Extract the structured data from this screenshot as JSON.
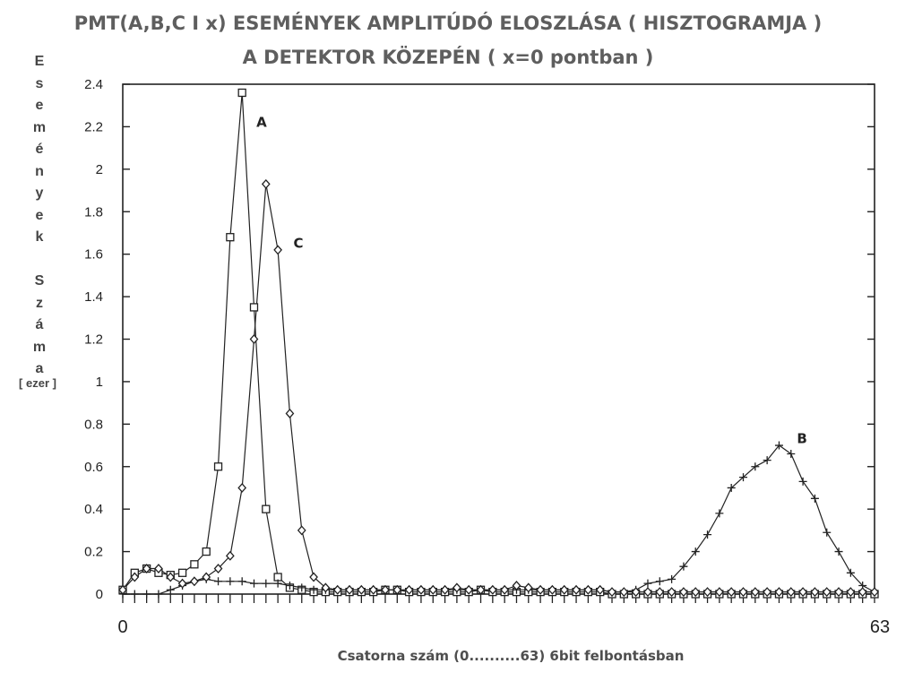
{
  "title_line1": "PMT(A,B,C I x) ESEMÉNYEK AMPLITÚDÓ ELOSZLÁSA ( HISZTOGRAMJA )",
  "title_line2": "A DETEKTOR KÖZEPÉN ( x=0 pontban )",
  "ylabel_letters": [
    "E",
    "s",
    "e",
    "m",
    "é",
    "n",
    "y",
    "e",
    "k",
    "",
    "S",
    "z",
    "á",
    "m",
    "a"
  ],
  "ylabel_unit": "[ ezer ]",
  "xlabel": "Csatorna szám (0..........63) 6bit felbontásban",
  "chart_data": {
    "type": "line",
    "xlim": [
      0,
      63
    ],
    "ylim": [
      0,
      2.4
    ],
    "yticks": [
      "0",
      "0.2",
      "0.4",
      "0.6",
      "0.8",
      "1",
      "1.2",
      "1.4",
      "1.6",
      "1.8",
      "2",
      "2.2",
      "2.4"
    ],
    "xtick_labels": [
      "0",
      "63"
    ],
    "grid": false,
    "series": [
      {
        "name": "A",
        "marker": "square",
        "x": [
          0,
          1,
          2,
          3,
          4,
          5,
          6,
          7,
          8,
          9,
          10,
          11,
          12,
          13,
          14,
          15,
          16,
          17,
          18,
          19,
          20,
          21,
          22,
          23,
          24,
          25,
          26,
          27,
          28,
          29,
          30,
          31,
          32,
          33,
          34,
          35,
          36,
          37,
          38,
          39,
          40,
          41,
          42,
          43,
          44,
          45,
          46,
          47,
          48,
          49,
          50,
          51,
          52,
          53,
          54,
          55,
          56,
          57,
          58,
          59,
          60,
          61,
          62,
          63
        ],
        "y": [
          0.02,
          0.1,
          0.12,
          0.1,
          0.09,
          0.1,
          0.14,
          0.2,
          0.6,
          1.68,
          2.36,
          1.35,
          0.4,
          0.08,
          0.03,
          0.02,
          0.01,
          0.01,
          0.01,
          0.01,
          0.01,
          0.01,
          0.02,
          0.02,
          0.01,
          0.01,
          0.01,
          0.01,
          0.01,
          0.01,
          0.02,
          0.01,
          0.01,
          0.01,
          0.01,
          0.01,
          0.01,
          0.01,
          0.01,
          0.01,
          0.01,
          0.0,
          0.0,
          0.0,
          0.0,
          0.0,
          0.0,
          0.0,
          0.0,
          0.0,
          0.0,
          0.0,
          0.0,
          0.0,
          0.0,
          0.0,
          0.0,
          0.0,
          0.0,
          0.0,
          0.0,
          0.0,
          0.0,
          0.0
        ]
      },
      {
        "name": "B",
        "marker": "plus",
        "x": [
          0,
          1,
          2,
          3,
          4,
          5,
          6,
          7,
          8,
          9,
          10,
          11,
          12,
          13,
          14,
          15,
          16,
          17,
          18,
          19,
          20,
          21,
          22,
          23,
          24,
          25,
          26,
          27,
          28,
          29,
          30,
          31,
          32,
          33,
          34,
          35,
          36,
          37,
          38,
          39,
          40,
          41,
          42,
          43,
          44,
          45,
          46,
          47,
          48,
          49,
          50,
          51,
          52,
          53,
          54,
          55,
          56,
          57,
          58,
          59,
          60,
          61,
          62,
          63
        ],
        "y": [
          0.0,
          0.0,
          0.0,
          0.0,
          0.02,
          0.04,
          0.06,
          0.07,
          0.06,
          0.06,
          0.06,
          0.05,
          0.05,
          0.05,
          0.04,
          0.03,
          0.02,
          0.02,
          0.02,
          0.02,
          0.02,
          0.02,
          0.02,
          0.02,
          0.02,
          0.02,
          0.02,
          0.02,
          0.02,
          0.02,
          0.02,
          0.02,
          0.02,
          0.02,
          0.02,
          0.02,
          0.02,
          0.02,
          0.02,
          0.02,
          0.02,
          0.01,
          0.01,
          0.02,
          0.05,
          0.06,
          0.07,
          0.13,
          0.2,
          0.28,
          0.38,
          0.5,
          0.55,
          0.6,
          0.63,
          0.7,
          0.66,
          0.53,
          0.45,
          0.29,
          0.2,
          0.1,
          0.04,
          0.01
        ]
      },
      {
        "name": "C",
        "marker": "diamond",
        "x": [
          0,
          1,
          2,
          3,
          4,
          5,
          6,
          7,
          8,
          9,
          10,
          11,
          12,
          13,
          14,
          15,
          16,
          17,
          18,
          19,
          20,
          21,
          22,
          23,
          24,
          25,
          26,
          27,
          28,
          29,
          30,
          31,
          32,
          33,
          34,
          35,
          36,
          37,
          38,
          39,
          40,
          41,
          42,
          43,
          44,
          45,
          46,
          47,
          48,
          49,
          50,
          51,
          52,
          53,
          54,
          55,
          56,
          57,
          58,
          59,
          60,
          61,
          62,
          63
        ],
        "y": [
          0.02,
          0.08,
          0.12,
          0.12,
          0.08,
          0.05,
          0.06,
          0.08,
          0.12,
          0.18,
          0.5,
          1.2,
          1.93,
          1.62,
          0.85,
          0.3,
          0.08,
          0.03,
          0.02,
          0.02,
          0.02,
          0.02,
          0.02,
          0.02,
          0.02,
          0.02,
          0.02,
          0.02,
          0.03,
          0.02,
          0.02,
          0.02,
          0.02,
          0.04,
          0.03,
          0.02,
          0.02,
          0.02,
          0.02,
          0.02,
          0.02,
          0.01,
          0.01,
          0.01,
          0.01,
          0.01,
          0.01,
          0.01,
          0.01,
          0.01,
          0.01,
          0.01,
          0.01,
          0.01,
          0.01,
          0.01,
          0.01,
          0.01,
          0.01,
          0.01,
          0.01,
          0.01,
          0.01,
          0.01
        ]
      }
    ],
    "annotations": [
      {
        "text": "A",
        "x": 11.2,
        "y": 2.2
      },
      {
        "text": "C",
        "x": 14.3,
        "y": 1.63
      },
      {
        "text": "B",
        "x": 56.5,
        "y": 0.71
      }
    ]
  }
}
